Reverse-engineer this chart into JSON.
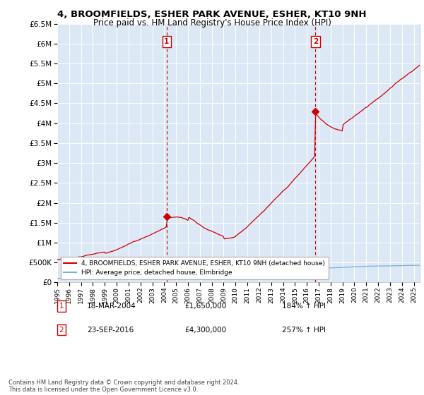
{
  "title": "4, BROOMFIELDS, ESHER PARK AVENUE, ESHER, KT10 9NH",
  "subtitle": "Price paid vs. HM Land Registry's House Price Index (HPI)",
  "ylim": [
    0,
    6500000
  ],
  "xlim_start": 1995.0,
  "xlim_end": 2025.5,
  "legend_line1": "4, BROOMFIELDS, ESHER PARK AVENUE, ESHER, KT10 9NH (detached house)",
  "legend_line2": "HPI: Average price, detached house, Elmbridge",
  "sale1_label": "1",
  "sale1_date": "18-MAR-2004",
  "sale1_price": "£1,650,000",
  "sale1_hpi": "184% ↑ HPI",
  "sale1_year": 2004.2,
  "sale1_value": 1650000,
  "sale2_label": "2",
  "sale2_date": "23-SEP-2016",
  "sale2_price": "£4,300,000",
  "sale2_hpi": "257% ↑ HPI",
  "sale2_year": 2016.72,
  "sale2_value": 4300000,
  "red_line_color": "#cc0000",
  "blue_line_color": "#7bafd4",
  "background_color": "#ffffff",
  "plot_bg_color": "#dce8f5",
  "grid_color": "#ffffff",
  "vline_color": "#cc0000",
  "title_fontsize": 9.5,
  "subtitle_fontsize": 8.5,
  "footer_text": "Contains HM Land Registry data © Crown copyright and database right 2024.\nThis data is licensed under the Open Government Licence v3.0.",
  "annotation_box_color": "#cc0000"
}
